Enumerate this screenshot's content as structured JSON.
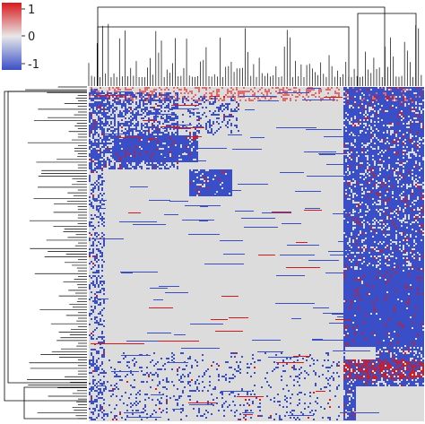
{
  "chart_data": {
    "type": "heatmap",
    "title": "",
    "xlabel": "",
    "ylabel": "",
    "color_scale": {
      "min": -1,
      "max": 1,
      "ticks": [
        {
          "value": 1,
          "label": "1"
        },
        {
          "value": 0,
          "label": "0"
        },
        {
          "value": -1,
          "label": "-1"
        }
      ],
      "colors": {
        "low": "#3a4fc7",
        "mid": "#e8e8e8",
        "high": "#d7191c"
      }
    },
    "background_value_color": "#dcdcdc",
    "dendrograms": {
      "top": true,
      "left": true
    },
    "blocks": [
      {
        "rows": [
          0.0,
          0.045
        ],
        "cols": [
          0.0,
          0.75
        ],
        "value": 0.3,
        "density": 0.35
      },
      {
        "rows": [
          0.0,
          0.05
        ],
        "cols": [
          0.76,
          1.0
        ],
        "value": 0.5,
        "density": 0.5
      },
      {
        "rows": [
          0.02,
          0.25
        ],
        "cols": [
          0.0,
          0.27
        ],
        "value": -1,
        "density": 0.55
      },
      {
        "rows": [
          0.03,
          0.15
        ],
        "cols": [
          0.28,
          0.45
        ],
        "value": -1,
        "density": 0.25
      },
      {
        "rows": [
          0.15,
          0.23
        ],
        "cols": [
          0.08,
          0.33
        ],
        "value": -1,
        "density": 0.85
      },
      {
        "rows": [
          0.25,
          0.33
        ],
        "cols": [
          0.3,
          0.43
        ],
        "value": -1,
        "density": 0.9
      },
      {
        "rows": [
          0.0,
          1.0
        ],
        "cols": [
          0.76,
          1.0
        ],
        "value": -1,
        "density": 0.82
      },
      {
        "rows": [
          0.55,
          0.78
        ],
        "cols": [
          0.76,
          1.0
        ],
        "value": -1,
        "density": 0.9
      },
      {
        "rows": [
          0.78,
          0.82
        ],
        "cols": [
          0.77,
          0.86
        ],
        "value": 0,
        "density": 1.0
      },
      {
        "rows": [
          0.82,
          0.88
        ],
        "cols": [
          0.76,
          1.0
        ],
        "value": 1,
        "density": 0.4
      },
      {
        "rows": [
          0.9,
          1.0
        ],
        "cols": [
          0.8,
          1.0
        ],
        "value": 0,
        "density": 1.0
      },
      {
        "rows": [
          0.8,
          1.0
        ],
        "cols": [
          0.0,
          0.75
        ],
        "value": -1,
        "density": 0.12
      },
      {
        "rows": [
          0.0,
          1.0
        ],
        "cols": [
          0.0,
          0.05
        ],
        "value": -1,
        "density": 0.3
      }
    ]
  }
}
